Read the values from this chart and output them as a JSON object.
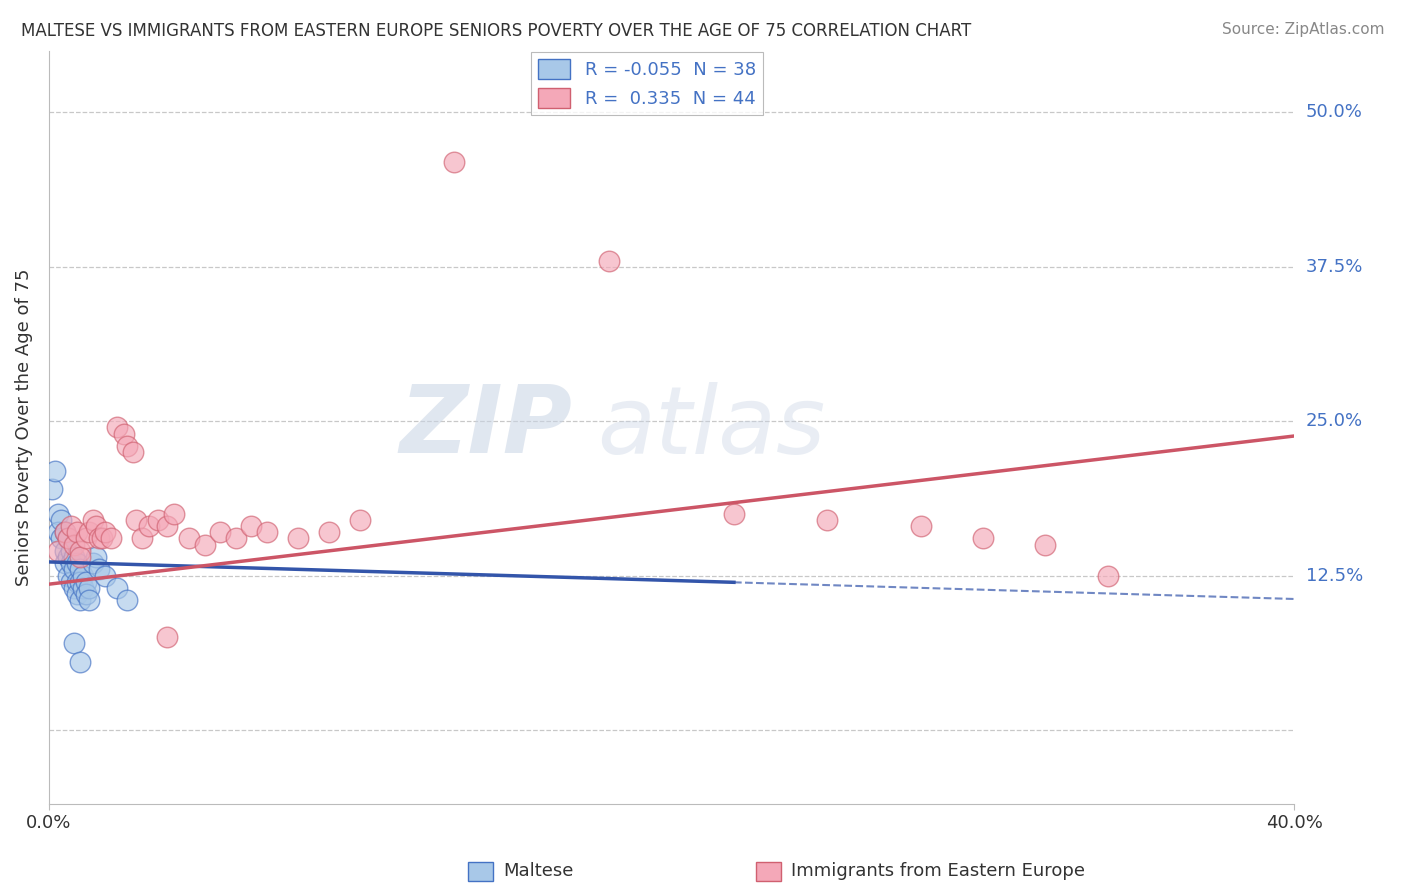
{
  "title": "MALTESE VS IMMIGRANTS FROM EASTERN EUROPE SENIORS POVERTY OVER THE AGE OF 75 CORRELATION CHART",
  "source": "Source: ZipAtlas.com",
  "ylabel": "Seniors Poverty Over the Age of 75",
  "ytick_values": [
    0.0,
    0.125,
    0.25,
    0.375,
    0.5
  ],
  "ytick_labels": [
    "",
    "12.5%",
    "25.0%",
    "37.5%",
    "50.0%"
  ],
  "xmin": 0.0,
  "xmax": 0.4,
  "ymin": -0.06,
  "ymax": 0.55,
  "legend_label_maltese": "Maltese",
  "legend_label_eastern": "Immigrants from Eastern Europe",
  "blue_fill_color": "#a8c8e8",
  "blue_edge_color": "#4472c4",
  "pink_fill_color": "#f4a8b8",
  "pink_edge_color": "#d06070",
  "blue_line_color": "#3355aa",
  "pink_line_color": "#cc5566",
  "blue_r": "-0.055",
  "blue_n": "38",
  "pink_r": "0.335",
  "pink_n": "44",
  "blue_scatter": [
    [
      0.001,
      0.195
    ],
    [
      0.002,
      0.21
    ],
    [
      0.003,
      0.175
    ],
    [
      0.003,
      0.16
    ],
    [
      0.004,
      0.17
    ],
    [
      0.004,
      0.155
    ],
    [
      0.005,
      0.16
    ],
    [
      0.005,
      0.145
    ],
    [
      0.005,
      0.135
    ],
    [
      0.006,
      0.155
    ],
    [
      0.006,
      0.14
    ],
    [
      0.006,
      0.125
    ],
    [
      0.007,
      0.145
    ],
    [
      0.007,
      0.135
    ],
    [
      0.007,
      0.12
    ],
    [
      0.008,
      0.14
    ],
    [
      0.008,
      0.13
    ],
    [
      0.008,
      0.115
    ],
    [
      0.009,
      0.135
    ],
    [
      0.009,
      0.12
    ],
    [
      0.009,
      0.11
    ],
    [
      0.01,
      0.13
    ],
    [
      0.01,
      0.12
    ],
    [
      0.01,
      0.105
    ],
    [
      0.011,
      0.125
    ],
    [
      0.011,
      0.115
    ],
    [
      0.012,
      0.12
    ],
    [
      0.012,
      0.11
    ],
    [
      0.013,
      0.115
    ],
    [
      0.013,
      0.105
    ],
    [
      0.014,
      0.135
    ],
    [
      0.015,
      0.14
    ],
    [
      0.016,
      0.13
    ],
    [
      0.018,
      0.125
    ],
    [
      0.022,
      0.115
    ],
    [
      0.025,
      0.105
    ],
    [
      0.008,
      0.07
    ],
    [
      0.01,
      0.055
    ]
  ],
  "pink_scatter": [
    [
      0.003,
      0.145
    ],
    [
      0.005,
      0.16
    ],
    [
      0.006,
      0.155
    ],
    [
      0.007,
      0.165
    ],
    [
      0.008,
      0.15
    ],
    [
      0.009,
      0.16
    ],
    [
      0.01,
      0.145
    ],
    [
      0.01,
      0.14
    ],
    [
      0.012,
      0.155
    ],
    [
      0.013,
      0.16
    ],
    [
      0.014,
      0.17
    ],
    [
      0.015,
      0.165
    ],
    [
      0.016,
      0.155
    ],
    [
      0.017,
      0.155
    ],
    [
      0.018,
      0.16
    ],
    [
      0.02,
      0.155
    ],
    [
      0.022,
      0.245
    ],
    [
      0.024,
      0.24
    ],
    [
      0.025,
      0.23
    ],
    [
      0.027,
      0.225
    ],
    [
      0.028,
      0.17
    ],
    [
      0.03,
      0.155
    ],
    [
      0.032,
      0.165
    ],
    [
      0.035,
      0.17
    ],
    [
      0.038,
      0.165
    ],
    [
      0.04,
      0.175
    ],
    [
      0.045,
      0.155
    ],
    [
      0.05,
      0.15
    ],
    [
      0.055,
      0.16
    ],
    [
      0.06,
      0.155
    ],
    [
      0.065,
      0.165
    ],
    [
      0.07,
      0.16
    ],
    [
      0.08,
      0.155
    ],
    [
      0.09,
      0.16
    ],
    [
      0.1,
      0.17
    ],
    [
      0.13,
      0.46
    ],
    [
      0.18,
      0.38
    ],
    [
      0.22,
      0.175
    ],
    [
      0.25,
      0.17
    ],
    [
      0.28,
      0.165
    ],
    [
      0.3,
      0.155
    ],
    [
      0.32,
      0.15
    ],
    [
      0.34,
      0.125
    ],
    [
      0.038,
      0.075
    ]
  ],
  "watermark_text": "ZIPatlas",
  "background_color": "#ffffff",
  "grid_color": "#c8c8c8"
}
